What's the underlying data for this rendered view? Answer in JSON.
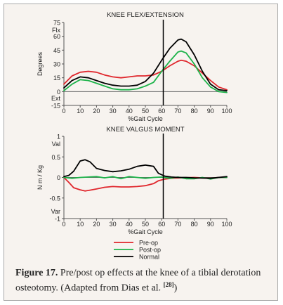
{
  "chart_data": [
    {
      "type": "line",
      "title": "KNEE FLEX/EXTENSION",
      "xlabel": "%Gait Cycle",
      "ylabel": "Degrees",
      "xlim": [
        0,
        100
      ],
      "ylim": [
        -15,
        75
      ],
      "xticks": [
        0,
        10,
        20,
        30,
        40,
        50,
        60,
        70,
        80,
        90,
        100
      ],
      "yticks": [
        -15,
        0,
        15,
        30,
        45,
        60,
        75
      ],
      "ytick_labels": [
        "-15",
        "0",
        "15",
        "30",
        "45",
        "60",
        "75"
      ],
      "top_label": "Flx",
      "bottom_label": "Ext",
      "vline_x": 61,
      "grid": false,
      "series": [
        {
          "name": "Pre-op",
          "color": "#e0262c",
          "x": [
            0,
            5,
            10,
            15,
            20,
            25,
            30,
            35,
            40,
            45,
            50,
            55,
            60,
            65,
            70,
            72,
            75,
            80,
            85,
            90,
            95,
            100
          ],
          "y": [
            8,
            17,
            21,
            22,
            21,
            18,
            16,
            15,
            16,
            17,
            17,
            18,
            22,
            28,
            33,
            34,
            33,
            28,
            20,
            12,
            5,
            2
          ]
        },
        {
          "name": "Post-op",
          "color": "#1db34a",
          "x": [
            0,
            5,
            10,
            15,
            20,
            25,
            30,
            35,
            40,
            45,
            50,
            55,
            60,
            65,
            70,
            72,
            75,
            80,
            85,
            90,
            95,
            100
          ],
          "y": [
            1,
            8,
            13,
            12,
            9,
            6,
            3,
            2,
            2,
            3,
            6,
            10,
            22,
            33,
            43,
            44,
            42,
            30,
            15,
            5,
            0,
            -1
          ]
        },
        {
          "name": "Normal",
          "color": "#000000",
          "x": [
            0,
            5,
            10,
            15,
            20,
            25,
            30,
            35,
            40,
            45,
            50,
            55,
            60,
            65,
            70,
            72,
            75,
            80,
            85,
            90,
            95,
            100
          ],
          "y": [
            4,
            12,
            16,
            15,
            12,
            9,
            7,
            6,
            6,
            7,
            11,
            20,
            34,
            47,
            56,
            57,
            54,
            40,
            22,
            8,
            2,
            1
          ]
        }
      ]
    },
    {
      "type": "line",
      "title": "KNEE VALGUS MOMENT",
      "xlabel": "%Gait Cycle",
      "ylabel": "N m / Kg",
      "xlim": [
        0,
        100
      ],
      "ylim": [
        -1,
        1
      ],
      "xticks": [
        0,
        10,
        20,
        30,
        40,
        50,
        60,
        70,
        80,
        90,
        100
      ],
      "yticks": [
        -1,
        -0.5,
        0,
        0.5,
        1
      ],
      "ytick_labels": [
        "-1",
        "-0.5",
        "0",
        "0.5",
        "1"
      ],
      "top_label": "Val",
      "bottom_label": "Var",
      "vline_x": 61,
      "grid": false,
      "series": [
        {
          "name": "Pre-op",
          "color": "#e0262c",
          "x": [
            0,
            3,
            6,
            10,
            13,
            16,
            20,
            25,
            30,
            35,
            40,
            45,
            50,
            55,
            58,
            62,
            66,
            70,
            80,
            90,
            95,
            100
          ],
          "y": [
            0,
            -0.12,
            -0.25,
            -0.3,
            -0.33,
            -0.31,
            -0.28,
            -0.24,
            -0.22,
            -0.23,
            -0.23,
            -0.22,
            -0.2,
            -0.15,
            -0.08,
            -0.04,
            -0.02,
            -0.01,
            0,
            -0.02,
            0,
            0
          ]
        },
        {
          "name": "Post-op",
          "color": "#1db34a",
          "x": [
            0,
            5,
            10,
            15,
            20,
            25,
            30,
            35,
            40,
            45,
            50,
            55,
            60,
            65,
            70,
            75,
            80,
            85,
            90,
            95,
            100
          ],
          "y": [
            0,
            -0.02,
            0,
            0.01,
            0.02,
            -0.01,
            0.02,
            -0.03,
            0.02,
            0,
            -0.02,
            0,
            0.01,
            -0.02,
            0.01,
            -0.03,
            -0.03,
            0,
            -0.04,
            0,
            0
          ]
        },
        {
          "name": "Normal",
          "color": "#000000",
          "x": [
            0,
            3,
            6,
            10,
            13,
            16,
            20,
            25,
            30,
            35,
            40,
            45,
            50,
            55,
            58,
            62,
            66,
            70,
            75,
            80,
            90,
            100
          ],
          "y": [
            0.02,
            0.05,
            0.15,
            0.4,
            0.43,
            0.38,
            0.22,
            0.17,
            0.14,
            0.16,
            0.2,
            0.27,
            0.3,
            0.27,
            0.1,
            0.03,
            0.01,
            0,
            0,
            -0.01,
            -0.02,
            0.02
          ]
        }
      ]
    }
  ],
  "legend": {
    "placement": "bottom-center",
    "items": [
      {
        "label": "Pre-op",
        "color": "#e0262c"
      },
      {
        "label": "Post-op",
        "color": "#1db34a"
      },
      {
        "label": "Normal",
        "color": "#000000"
      }
    ]
  },
  "caption": {
    "label": "Figure 17.",
    "text": " Pre/post op effects at the knee of a tibial derotation osteotomy. (Adapted from Dias et al. ",
    "ref": "[28]",
    "end": ")"
  }
}
